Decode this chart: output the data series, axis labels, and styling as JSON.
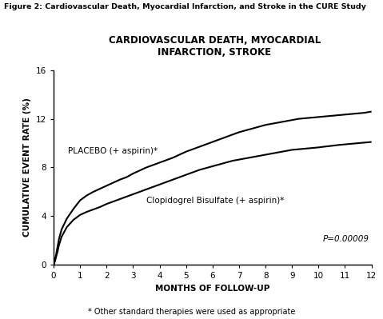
{
  "figure_title": "Figure 2: Cardiovascular Death, Myocardial Infarction, and Stroke in the CURE Study",
  "chart_title": "CARDIOVASCULAR DEATH, MYOCARDIAL\nINFARCTION, STROKE",
  "xlabel": "MONTHS OF FOLLOW-UP",
  "ylabel": "CUMULATIVE EVENT RATE (%)",
  "footnote": "* Other standard therapies were used as appropriate",
  "pvalue": "P=0.00009",
  "xlim": [
    0,
    12
  ],
  "ylim": [
    0,
    16
  ],
  "xticks": [
    0,
    1,
    2,
    3,
    4,
    5,
    6,
    7,
    8,
    9,
    10,
    11,
    12
  ],
  "yticks": [
    0,
    4,
    8,
    12,
    16
  ],
  "placebo_label": "PLACEBO (+ aspirin)*",
  "clopi_label": "Clopidogrel Bisulfate (+ aspirin)*",
  "placebo_x": [
    0,
    0.05,
    0.1,
    0.15,
    0.2,
    0.3,
    0.5,
    0.75,
    1.0,
    1.25,
    1.5,
    1.75,
    2.0,
    2.25,
    2.5,
    2.75,
    3.0,
    3.25,
    3.5,
    3.75,
    4.0,
    4.25,
    4.5,
    4.75,
    5.0,
    5.25,
    5.5,
    5.75,
    6.0,
    6.25,
    6.5,
    6.75,
    7.0,
    7.25,
    7.5,
    7.75,
    8.0,
    8.25,
    8.5,
    8.75,
    9.0,
    9.25,
    9.5,
    9.75,
    10.0,
    10.25,
    10.5,
    10.75,
    11.0,
    11.25,
    11.5,
    11.75,
    12.0
  ],
  "placebo_y": [
    0,
    0.4,
    0.9,
    1.5,
    2.1,
    2.9,
    3.8,
    4.6,
    5.3,
    5.7,
    6.0,
    6.25,
    6.5,
    6.75,
    7.0,
    7.2,
    7.5,
    7.75,
    8.0,
    8.2,
    8.4,
    8.6,
    8.8,
    9.05,
    9.3,
    9.5,
    9.7,
    9.9,
    10.1,
    10.3,
    10.5,
    10.7,
    10.9,
    11.05,
    11.2,
    11.35,
    11.5,
    11.6,
    11.7,
    11.8,
    11.9,
    12.0,
    12.05,
    12.1,
    12.15,
    12.2,
    12.25,
    12.3,
    12.35,
    12.4,
    12.45,
    12.5,
    12.6
  ],
  "clopi_x": [
    0,
    0.05,
    0.1,
    0.15,
    0.2,
    0.3,
    0.5,
    0.75,
    1.0,
    1.25,
    1.5,
    1.75,
    2.0,
    2.25,
    2.5,
    2.75,
    3.0,
    3.25,
    3.5,
    3.75,
    4.0,
    4.25,
    4.5,
    4.75,
    5.0,
    5.25,
    5.5,
    5.75,
    6.0,
    6.25,
    6.5,
    6.75,
    7.0,
    7.25,
    7.5,
    7.75,
    8.0,
    8.25,
    8.5,
    8.75,
    9.0,
    9.25,
    9.5,
    9.75,
    10.0,
    10.25,
    10.5,
    10.75,
    11.0,
    11.25,
    11.5,
    11.75,
    12.0
  ],
  "clopi_y": [
    0,
    0.3,
    0.7,
    1.1,
    1.6,
    2.3,
    3.1,
    3.7,
    4.1,
    4.35,
    4.55,
    4.75,
    5.0,
    5.2,
    5.4,
    5.6,
    5.8,
    6.0,
    6.2,
    6.4,
    6.6,
    6.8,
    7.0,
    7.2,
    7.4,
    7.6,
    7.8,
    7.95,
    8.1,
    8.25,
    8.4,
    8.55,
    8.65,
    8.75,
    8.85,
    8.95,
    9.05,
    9.15,
    9.25,
    9.35,
    9.45,
    9.5,
    9.55,
    9.6,
    9.65,
    9.72,
    9.78,
    9.85,
    9.9,
    9.95,
    10.0,
    10.05,
    10.1
  ],
  "line_color": "#000000",
  "background_color": "#ffffff",
  "figure_title_fontsize": 6.8,
  "chart_title_fontsize": 8.5,
  "axis_label_fontsize": 7.5,
  "tick_fontsize": 7.5,
  "annotation_fontsize": 7.5,
  "footnote_fontsize": 7.0
}
